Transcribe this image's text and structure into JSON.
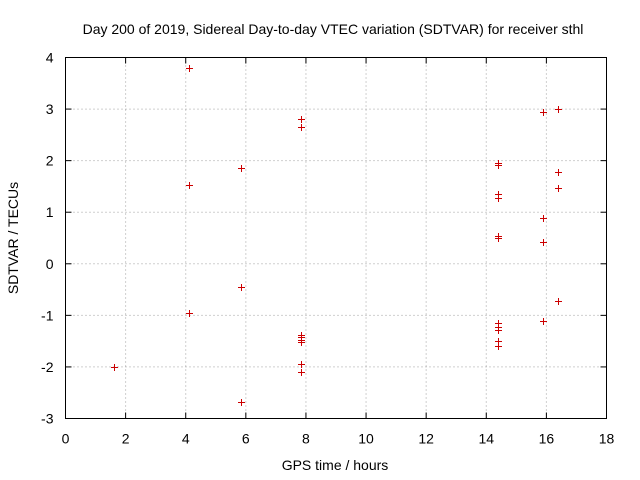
{
  "colors": {
    "marker": "#cc0000",
    "axis": "#000000",
    "grid": "#a0a0a0",
    "background": "#ffffff"
  },
  "chart_data": {
    "type": "scatter",
    "title": "Day 200 of 2019, Sidereal Day-to-day VTEC variation (SDTVAR) for receiver sthl",
    "xlabel": "GPS time / hours",
    "ylabel": "SDTVAR / TECUs",
    "xlim": [
      0,
      18
    ],
    "ylim": [
      -3,
      4
    ],
    "xticks": [
      0,
      2,
      4,
      6,
      8,
      10,
      12,
      14,
      16,
      18
    ],
    "yticks": [
      -3,
      -2,
      -1,
      0,
      1,
      2,
      3,
      4
    ],
    "grid": true,
    "marker": "+",
    "series": [
      {
        "name": "SDTVAR",
        "x": [
          1.6,
          4.1,
          4.1,
          4.1,
          5.85,
          5.85,
          5.85,
          7.85,
          7.85,
          7.85,
          7.85,
          7.85,
          7.85,
          7.85,
          7.85,
          14.4,
          14.4,
          14.4,
          14.4,
          14.4,
          14.4,
          14.4,
          14.4,
          14.4,
          14.4,
          14.4,
          15.9,
          15.9,
          15.9,
          15.9,
          16.4,
          16.4,
          16.4,
          16.4
        ],
        "y": [
          -2.0,
          3.8,
          1.52,
          -0.95,
          1.85,
          -0.45,
          -2.68,
          2.8,
          2.65,
          -1.38,
          -1.47,
          -1.52,
          -1.95,
          -2.1,
          -1.42,
          1.95,
          1.92,
          1.35,
          1.27,
          0.53,
          0.5,
          -1.15,
          -1.28,
          -1.5,
          -1.6,
          -1.22,
          2.95,
          0.88,
          0.42,
          -1.1,
          3.0,
          1.78,
          1.47,
          -0.72
        ]
      }
    ]
  }
}
